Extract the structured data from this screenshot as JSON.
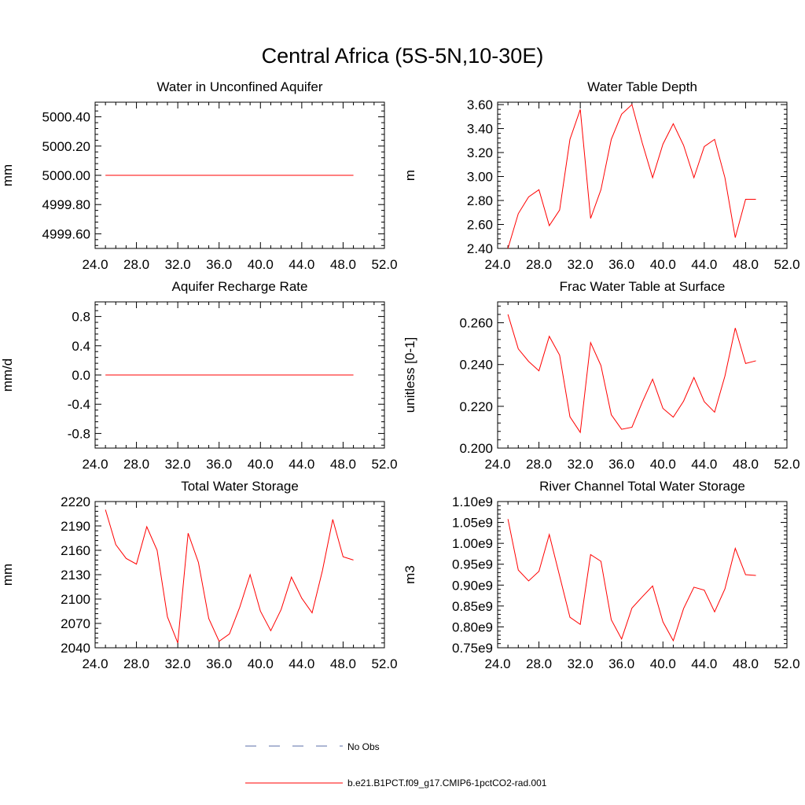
{
  "title": "Central Africa (5S-5N,10-30E)",
  "legend": {
    "entries": [
      {
        "label": "No Obs",
        "style": "dashed",
        "color": "#5b6fa8"
      },
      {
        "label": "b.e21.B1PCT.f09_g17.CMIP6-1pctCO2-rad.001",
        "style": "solid",
        "color": "#ff0000"
      }
    ]
  },
  "chart_data": [
    {
      "type": "line",
      "title": "Water in Unconfined Aquifer",
      "ylabel": "mm",
      "xlim": [
        24,
        52
      ],
      "ylim": [
        4999.5,
        5000.5
      ],
      "xticks": [
        24,
        28,
        32,
        36,
        40,
        44,
        48,
        52
      ],
      "xtick_labels": [
        "24.0",
        "28.0",
        "32.0",
        "36.0",
        "40.0",
        "44.0",
        "48.0",
        "52.0"
      ],
      "yticks": [
        4999.6,
        4999.8,
        5000.0,
        5000.2,
        5000.4
      ],
      "ytick_labels": [
        "4999.60",
        "4999.80",
        "5000.00",
        "5000.20",
        "5000.40"
      ],
      "x": [
        25,
        26,
        27,
        28,
        29,
        30,
        31,
        32,
        33,
        34,
        35,
        36,
        37,
        38,
        39,
        40,
        41,
        42,
        43,
        44,
        45,
        46,
        47,
        48,
        49
      ],
      "series": [
        {
          "values": [
            5000,
            5000,
            5000,
            5000,
            5000,
            5000,
            5000,
            5000,
            5000,
            5000,
            5000,
            5000,
            5000,
            5000,
            5000,
            5000,
            5000,
            5000,
            5000,
            5000,
            5000,
            5000,
            5000,
            5000,
            5000
          ],
          "color": "#ff0000"
        }
      ]
    },
    {
      "type": "line",
      "title": "Water Table Depth",
      "ylabel": "m",
      "xlim": [
        24,
        52
      ],
      "ylim": [
        2.4,
        3.62
      ],
      "xticks": [
        24,
        28,
        32,
        36,
        40,
        44,
        48,
        52
      ],
      "xtick_labels": [
        "24.0",
        "28.0",
        "32.0",
        "36.0",
        "40.0",
        "44.0",
        "48.0",
        "52.0"
      ],
      "yticks": [
        2.4,
        2.6,
        2.8,
        3.0,
        3.2,
        3.4,
        3.6
      ],
      "ytick_labels": [
        "2.40",
        "2.60",
        "2.80",
        "3.00",
        "3.20",
        "3.40",
        "3.60"
      ],
      "x": [
        25,
        26,
        27,
        28,
        29,
        30,
        31,
        32,
        33,
        34,
        35,
        36,
        37,
        38,
        39,
        40,
        41,
        42,
        43,
        44,
        45,
        46,
        47,
        48,
        49
      ],
      "series": [
        {
          "values": [
            2.4,
            2.69,
            2.83,
            2.89,
            2.59,
            2.72,
            3.31,
            3.56,
            2.65,
            2.89,
            3.31,
            3.52,
            3.6,
            3.28,
            2.99,
            3.27,
            3.44,
            3.26,
            2.99,
            3.25,
            3.31,
            2.99,
            2.49,
            2.81,
            2.81
          ],
          "color": "#ff0000"
        }
      ]
    },
    {
      "type": "line",
      "title": "Aquifer Recharge Rate",
      "ylabel": "mm/d",
      "xlim": [
        24,
        52
      ],
      "ylim": [
        -1,
        1
      ],
      "xticks": [
        24,
        28,
        32,
        36,
        40,
        44,
        48,
        52
      ],
      "xtick_labels": [
        "24.0",
        "28.0",
        "32.0",
        "36.0",
        "40.0",
        "44.0",
        "48.0",
        "52.0"
      ],
      "yticks": [
        -0.8,
        -0.4,
        0.0,
        0.4,
        0.8
      ],
      "ytick_labels": [
        "-0.8",
        "-0.4",
        "0.0",
        "0.4",
        "0.8"
      ],
      "x": [
        25,
        26,
        27,
        28,
        29,
        30,
        31,
        32,
        33,
        34,
        35,
        36,
        37,
        38,
        39,
        40,
        41,
        42,
        43,
        44,
        45,
        46,
        47,
        48,
        49
      ],
      "series": [
        {
          "values": [
            0,
            0,
            0,
            0,
            0,
            0,
            0,
            0,
            0,
            0,
            0,
            0,
            0,
            0,
            0,
            0,
            0,
            0,
            0,
            0,
            0,
            0,
            0,
            0,
            0
          ],
          "color": "#ff0000"
        }
      ]
    },
    {
      "type": "line",
      "title": "Frac Water Table at Surface",
      "ylabel": "unitless [0-1]",
      "xlim": [
        24,
        52
      ],
      "ylim": [
        0.2,
        0.27
      ],
      "xticks": [
        24,
        28,
        32,
        36,
        40,
        44,
        48,
        52
      ],
      "xtick_labels": [
        "24.0",
        "28.0",
        "32.0",
        "36.0",
        "40.0",
        "44.0",
        "48.0",
        "52.0"
      ],
      "yticks": [
        0.2,
        0.22,
        0.24,
        0.26
      ],
      "ytick_labels": [
        "0.200",
        "0.220",
        "0.240",
        "0.260"
      ],
      "x": [
        25,
        26,
        27,
        28,
        29,
        30,
        31,
        32,
        33,
        34,
        35,
        36,
        37,
        38,
        39,
        40,
        41,
        42,
        43,
        44,
        45,
        46,
        47,
        48,
        49
      ],
      "series": [
        {
          "values": [
            0.264,
            0.2475,
            0.2415,
            0.237,
            0.2535,
            0.2445,
            0.215,
            0.2075,
            0.2505,
            0.2395,
            0.216,
            0.209,
            0.21,
            0.222,
            0.233,
            0.219,
            0.2148,
            0.2225,
            0.2338,
            0.2222,
            0.2172,
            0.2345,
            0.2575,
            0.2405,
            0.2418
          ],
          "color": "#ff0000"
        }
      ]
    },
    {
      "type": "line",
      "title": "Total Water Storage",
      "ylabel": "mm",
      "xlim": [
        24,
        52
      ],
      "ylim": [
        2040,
        2220
      ],
      "xticks": [
        24,
        28,
        32,
        36,
        40,
        44,
        48,
        52
      ],
      "xtick_labels": [
        "24.0",
        "28.0",
        "32.0",
        "36.0",
        "40.0",
        "44.0",
        "48.0",
        "52.0"
      ],
      "yticks": [
        2040,
        2070,
        2100,
        2130,
        2160,
        2190,
        2220
      ],
      "ytick_labels": [
        "2040",
        "2070",
        "2100",
        "2130",
        "2160",
        "2190",
        "2220"
      ],
      "x": [
        25,
        26,
        27,
        28,
        29,
        30,
        31,
        32,
        33,
        34,
        35,
        36,
        37,
        38,
        39,
        40,
        41,
        42,
        43,
        44,
        45,
        46,
        47,
        48,
        49
      ],
      "series": [
        {
          "values": [
            2210,
            2167,
            2150,
            2143,
            2189,
            2160,
            2078,
            2046,
            2181,
            2145,
            2076,
            2048,
            2057,
            2090,
            2130,
            2085,
            2061,
            2087,
            2127,
            2101,
            2083,
            2135,
            2198,
            2152,
            2148
          ],
          "color": "#ff0000"
        }
      ]
    },
    {
      "type": "line",
      "title": "River Channel Total Water Storage",
      "ylabel": "m3",
      "xlim": [
        24,
        52
      ],
      "ylim": [
        750000000,
        1100000000
      ],
      "xticks": [
        24,
        28,
        32,
        36,
        40,
        44,
        48,
        52
      ],
      "xtick_labels": [
        "24.0",
        "28.0",
        "32.0",
        "36.0",
        "40.0",
        "44.0",
        "48.0",
        "52.0"
      ],
      "yticks": [
        750000000,
        800000000,
        850000000,
        900000000,
        950000000,
        1000000000,
        1050000000,
        1100000000
      ],
      "ytick_labels": [
        "0.75e9",
        "0.80e9",
        "0.85e9",
        "0.90e9",
        "0.95e9",
        "1.00e9",
        "1.05e9",
        "1.10e9"
      ],
      "x": [
        25,
        26,
        27,
        28,
        29,
        30,
        31,
        32,
        33,
        34,
        35,
        36,
        37,
        38,
        39,
        40,
        41,
        42,
        43,
        44,
        45,
        46,
        47,
        48,
        49
      ],
      "series": [
        {
          "values": [
            1058000000,
            936000000,
            910000000,
            933000000,
            1021000000,
            922000000,
            823000000,
            806000000,
            973000000,
            957000000,
            817000000,
            771000000,
            845000000,
            872000000,
            898000000,
            812000000,
            767000000,
            844000000,
            895000000,
            888000000,
            836000000,
            891000000,
            988000000,
            925000000,
            923000000
          ],
          "color": "#ff0000"
        }
      ]
    }
  ]
}
